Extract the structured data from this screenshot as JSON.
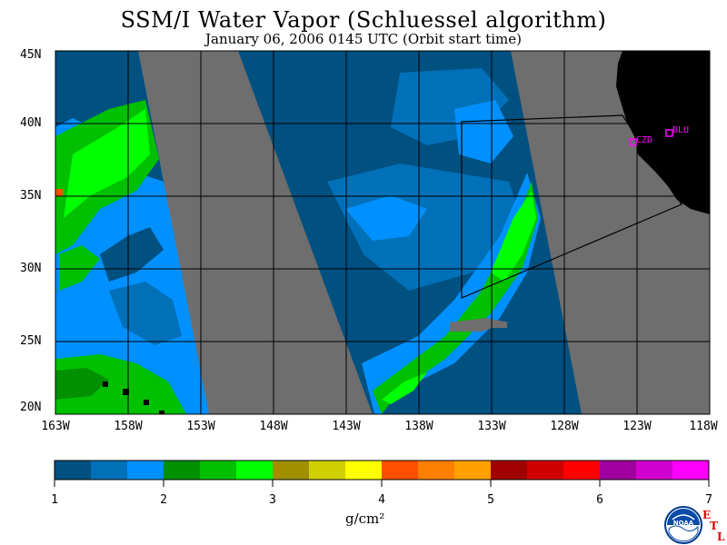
{
  "header": {
    "title": "SSM/I Water Vapor (Schluessel algorithm)",
    "subtitle": "January 06, 2006  0145 UTC  (Orbit start time)"
  },
  "map": {
    "lat_labels": [
      "45N",
      "40N",
      "35N",
      "30N",
      "25N",
      "20N"
    ],
    "lon_labels": [
      "163W",
      "158W",
      "153W",
      "148W",
      "143W",
      "138W",
      "133W",
      "128W",
      "123W",
      "118W"
    ],
    "stations": [
      {
        "name": "CZD"
      },
      {
        "name": "BLU"
      }
    ],
    "colors": {
      "no_data": "#6e6e6e",
      "land": "#000000",
      "grid": "#000000",
      "station": "#ff00ff"
    }
  },
  "colorbar": {
    "units": "g/cm²",
    "tick_labels": [
      "1",
      "2",
      "3",
      "4",
      "5",
      "6",
      "7"
    ],
    "colors": [
      "#005080",
      "#0070b8",
      "#0090ff",
      "#009000",
      "#00c000",
      "#00ff00",
      "#a09000",
      "#d0d000",
      "#ffff00",
      "#ff5000",
      "#ff8000",
      "#ffa000",
      "#a00000",
      "#d00000",
      "#ff0000",
      "#a000a0",
      "#d000d0",
      "#ff00ff"
    ]
  },
  "logo": {
    "text": "NOAA",
    "etl_letters": [
      "E",
      "T",
      "L"
    ]
  }
}
